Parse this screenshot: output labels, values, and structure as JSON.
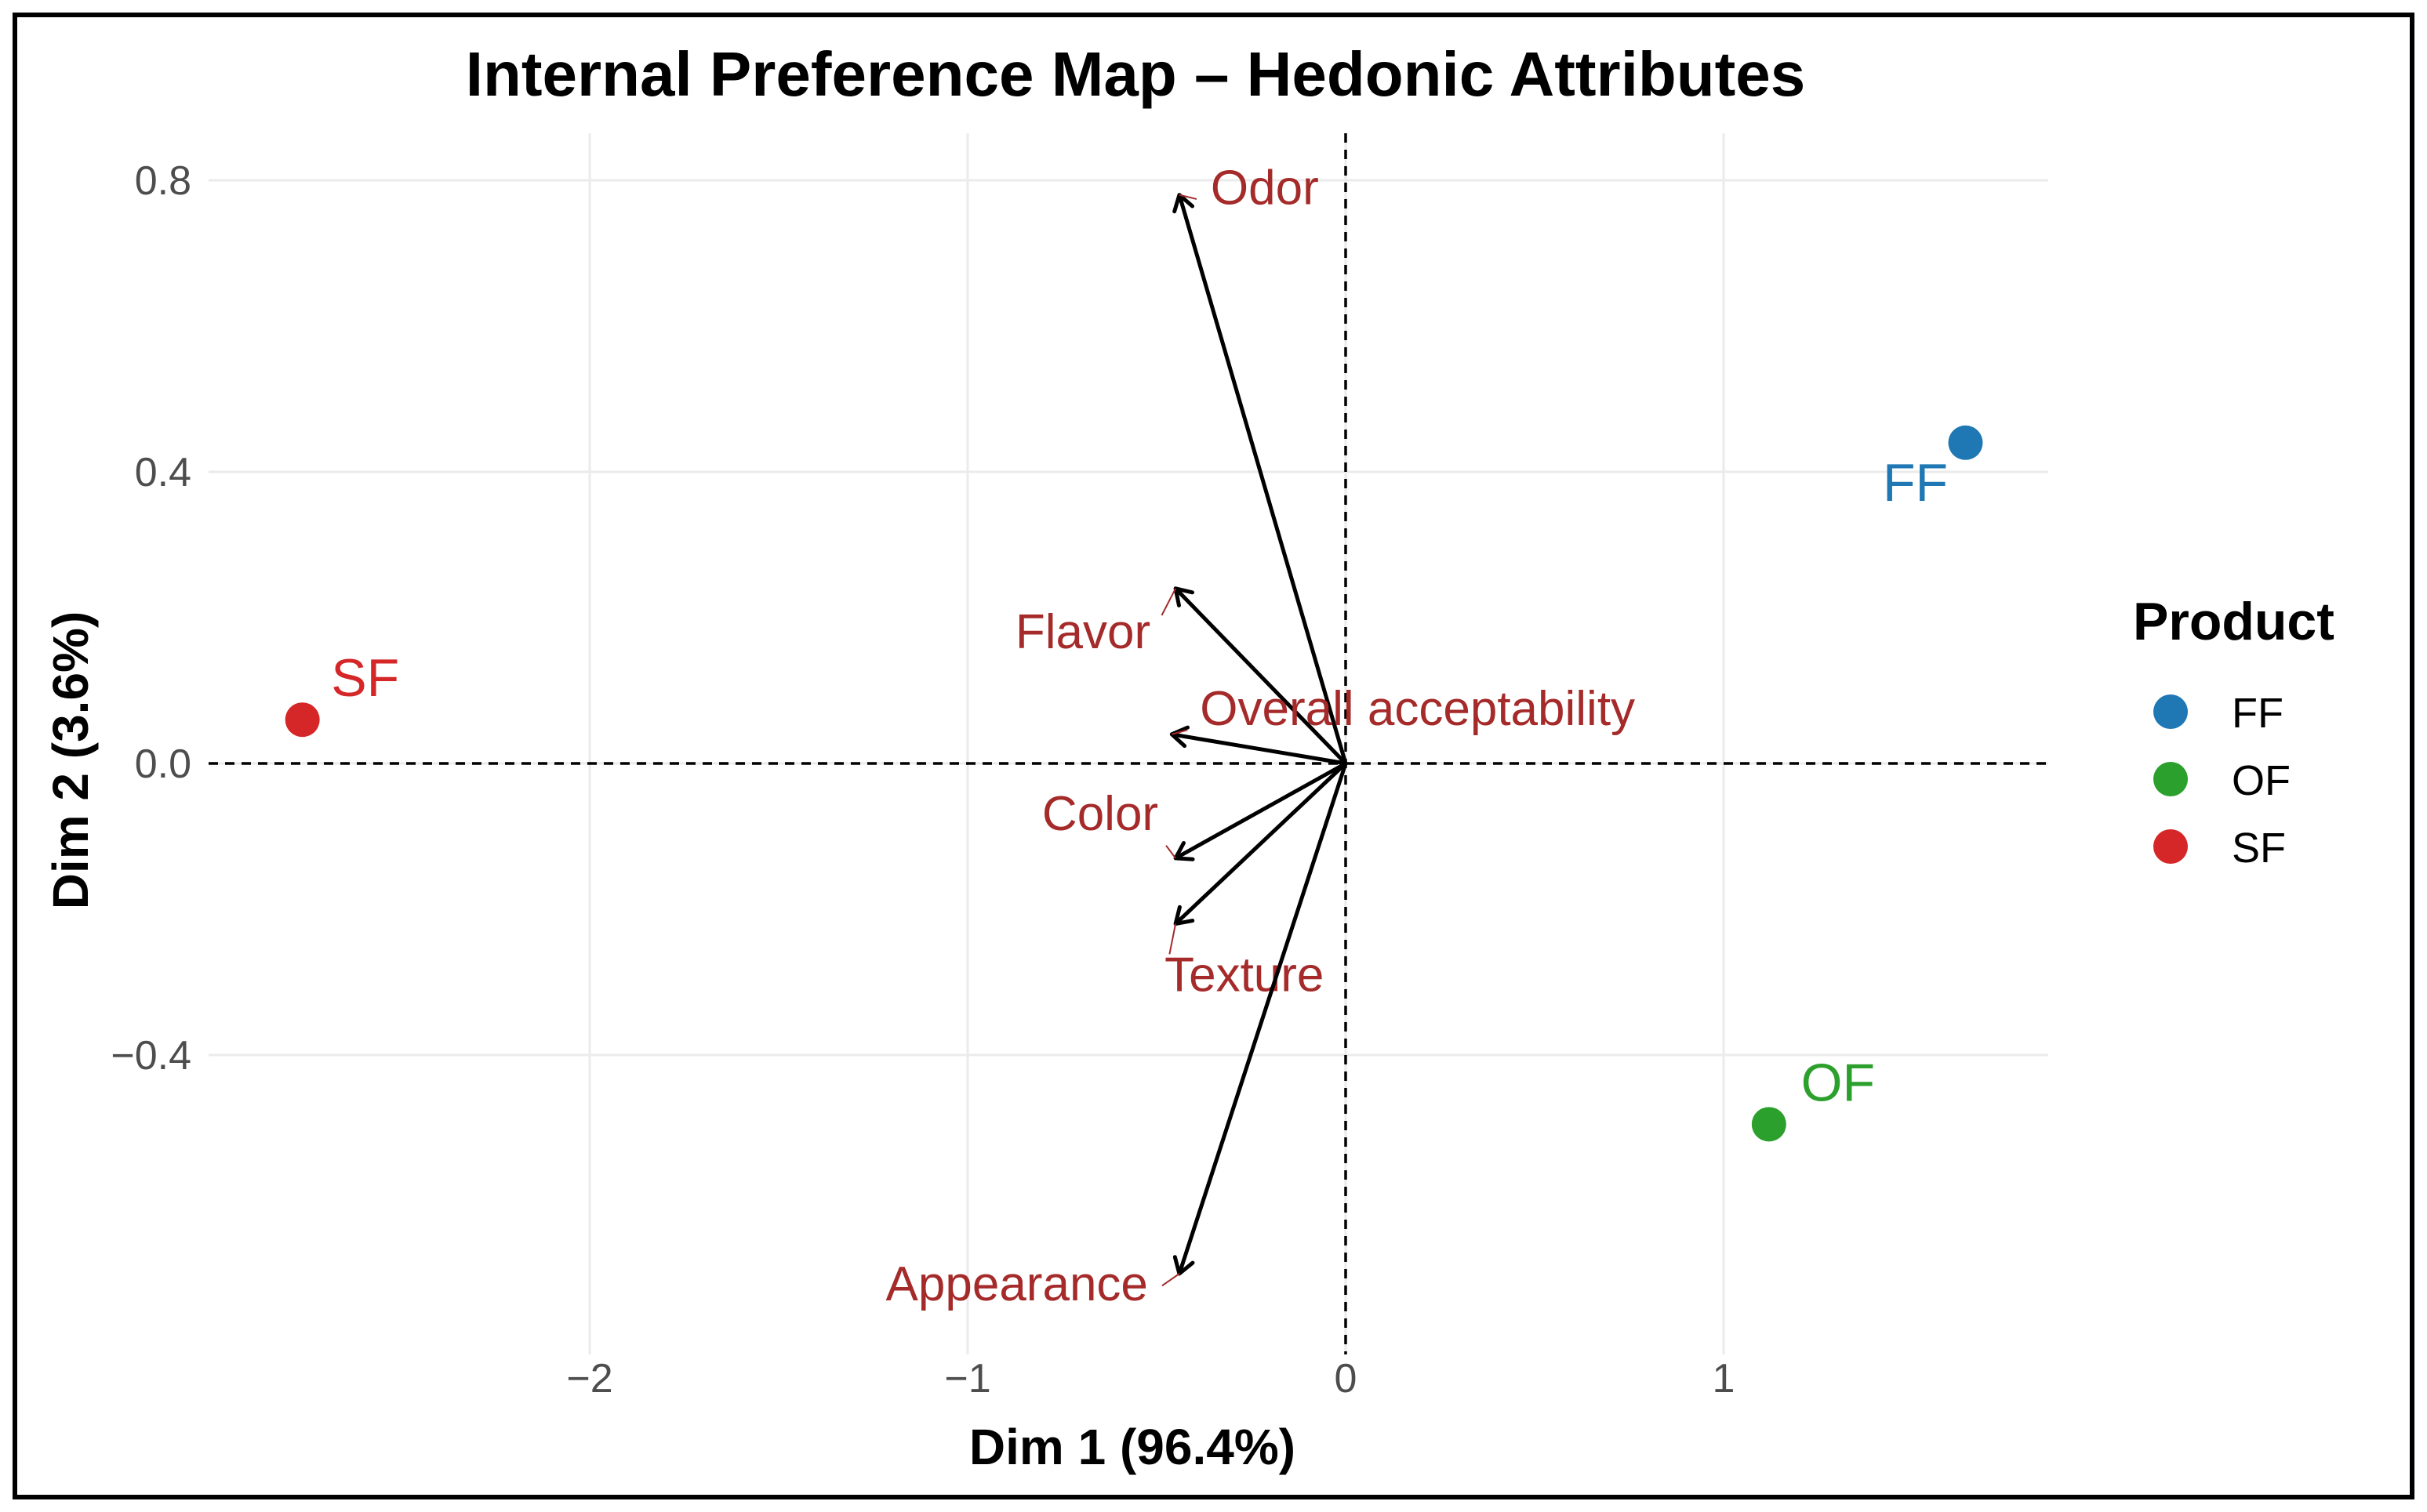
{
  "chart_data": {
    "type": "scatter",
    "title": "Internal Preference Map – Hedonic Attributes",
    "xlabel": "Dim 1 (96.4%)",
    "ylabel": "Dim 2 (3.6%)",
    "xlim": [
      -2.95,
      1.9
    ],
    "ylim": [
      -0.8,
      0.85
    ],
    "x_ticks": [
      -2,
      -1,
      0,
      1
    ],
    "x_tick_labels": [
      "−2",
      "−1",
      "0",
      "1"
    ],
    "y_ticks": [
      -0.4,
      0.0,
      0.4,
      0.8
    ],
    "y_tick_labels": [
      "−0.4",
      "0.0",
      "0.4",
      "0.8"
    ],
    "grid": true,
    "reference_lines": {
      "x": 0,
      "y": 0,
      "style": "dashed"
    },
    "points": [
      {
        "label": "FF",
        "x": 1.64,
        "y": 0.44,
        "color": "#1f77b4"
      },
      {
        "label": "OF",
        "x": 1.12,
        "y": -0.495,
        "color": "#2ca02c"
      },
      {
        "label": "SF",
        "x": -2.76,
        "y": 0.06,
        "color": "#d62728"
      }
    ],
    "vectors": [
      {
        "label": "Odor",
        "x": -0.44,
        "y": 0.78
      },
      {
        "label": "Flavor",
        "x": -0.45,
        "y": 0.24
      },
      {
        "label": "Overall acceptability",
        "x": -0.46,
        "y": 0.04
      },
      {
        "label": "Color",
        "x": -0.45,
        "y": -0.13
      },
      {
        "label": "Texture",
        "x": -0.45,
        "y": -0.22
      },
      {
        "label": "Appearance",
        "x": -0.44,
        "y": -0.7
      }
    ],
    "vector_label_color": "#a52a2a",
    "legend": {
      "title": "Product",
      "position": "right",
      "entries": [
        {
          "label": "FF",
          "color": "#1f77b4"
        },
        {
          "label": "OF",
          "color": "#2ca02c"
        },
        {
          "label": "SF",
          "color": "#d62728"
        }
      ]
    }
  }
}
